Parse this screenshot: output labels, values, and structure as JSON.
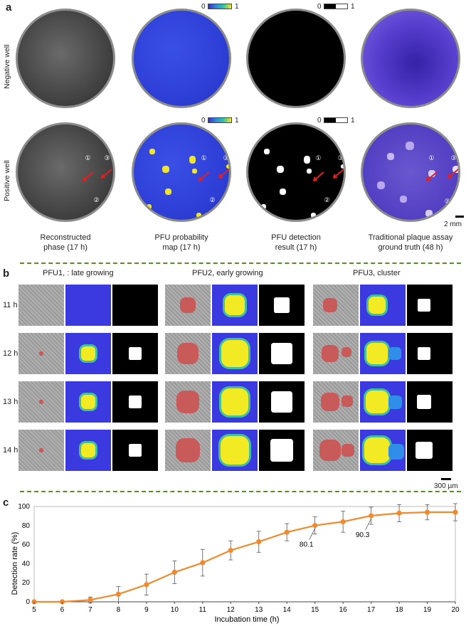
{
  "panel_a": {
    "letter": "a",
    "row_labels": [
      "Negative well",
      "Positive well"
    ],
    "captions": [
      [
        "Reconstructed",
        "phase (17 h)"
      ],
      [
        "PFU probability",
        "map (17 h)"
      ],
      [
        "PFU detection",
        "result (17 h)"
      ],
      [
        "Traditional plaque assay",
        "ground truth (48 h)"
      ]
    ],
    "colorbar_min": "0",
    "colorbar_max": "1",
    "markers": [
      "①",
      "②",
      "③"
    ],
    "scale_bar": "2 mm"
  },
  "panel_b": {
    "letter": "b",
    "groups": [
      "PFU1, : late growing",
      "PFU2, early growing",
      "PFU3, cluster"
    ],
    "times": [
      "11 h",
      "12 h",
      "13 h",
      "14 h"
    ],
    "scale_bar": "300 µm"
  },
  "chart_data": {
    "type": "line",
    "letter": "c",
    "xlabel": "Incubation time (h)",
    "ylabel": "Detection rate (%)",
    "xlim": [
      5,
      20
    ],
    "ylim": [
      0,
      100
    ],
    "x": [
      5,
      6,
      7,
      8,
      9,
      10,
      11,
      12,
      13,
      14,
      15,
      16,
      17,
      18,
      19,
      20
    ],
    "x_ticks": [
      "5",
      "6",
      "7",
      "8",
      "9",
      "10",
      "11",
      "12",
      "13",
      "14",
      "15",
      "16",
      "17",
      "18",
      "19",
      "20"
    ],
    "y_ticks": [
      "0",
      "20",
      "40",
      "60",
      "80",
      "100"
    ],
    "series": [
      {
        "values": [
          0,
          0,
          2,
          8,
          18,
          31,
          41,
          54,
          63,
          73,
          80.1,
          84,
          90.3,
          93,
          94,
          94
        ],
        "errors": [
          0,
          0,
          3,
          8,
          11,
          12,
          14,
          10,
          11,
          9,
          9,
          11,
          9,
          9,
          8,
          9
        ]
      }
    ],
    "annotations": [
      {
        "x": 15,
        "text": "80.1"
      },
      {
        "x": 17,
        "text": "90.3"
      }
    ],
    "color": "#ef8a2e"
  }
}
